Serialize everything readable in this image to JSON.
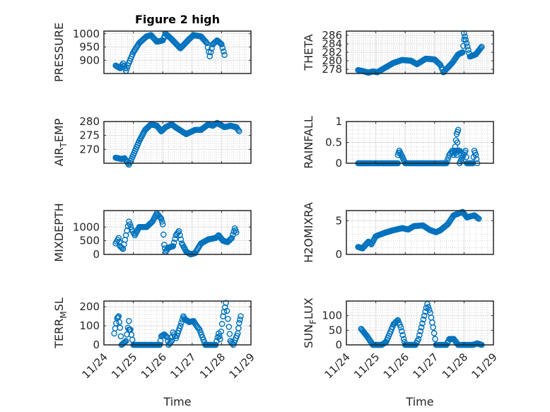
{
  "chart_data": [
    {
      "type": "scatter",
      "title": "Figure 2 high",
      "ylabel": "PRESSURE",
      "ylabel_sub": "",
      "ylim": [
        850,
        1010
      ],
      "yticks": [
        900,
        950,
        1000
      ],
      "xlim_days": [
        0,
        5
      ],
      "xticks": [
        "11/24",
        "11/25",
        "11/26",
        "11/27",
        "11/28",
        "11/29"
      ],
      "show_xticks": false,
      "points": [
        [
          0.4,
          880
        ],
        [
          0.55,
          870
        ],
        [
          0.65,
          888
        ],
        [
          0.75,
          860
        ],
        [
          0.85,
          890
        ],
        [
          1.0,
          930
        ],
        [
          1.2,
          965
        ],
        [
          1.45,
          990
        ],
        [
          1.6,
          995
        ],
        [
          1.8,
          970
        ],
        [
          2.0,
          975
        ],
        [
          2.1,
          1000
        ],
        [
          2.3,
          980
        ],
        [
          2.6,
          945
        ],
        [
          2.9,
          980
        ],
        [
          3.05,
          995
        ],
        [
          3.3,
          990
        ],
        [
          3.5,
          965
        ],
        [
          3.6,
          915
        ],
        [
          3.7,
          960
        ],
        [
          3.85,
          975
        ],
        [
          4.0,
          960
        ],
        [
          4.1,
          920
        ]
      ],
      "grid": true,
      "minor_grid": true
    },
    {
      "type": "scatter",
      "title": "",
      "ylabel": "THETA",
      "ylabel_sub": "",
      "ylim": [
        277,
        287
      ],
      "yticks": [
        278,
        280,
        282,
        284,
        286
      ],
      "xlim_days": [
        0,
        5
      ],
      "xticks": [
        "11/24",
        "11/25",
        "11/26",
        "11/27",
        "11/28",
        "11/29"
      ],
      "show_xticks": false,
      "points": [
        [
          0.4,
          277.8
        ],
        [
          0.6,
          277.5
        ],
        [
          0.75,
          277.2
        ],
        [
          0.9,
          277.5
        ],
        [
          1.05,
          277.3
        ],
        [
          1.3,
          278.3
        ],
        [
          1.6,
          279.5
        ],
        [
          1.9,
          280.2
        ],
        [
          2.2,
          280
        ],
        [
          2.4,
          279.2
        ],
        [
          2.7,
          280.5
        ],
        [
          3.0,
          280.3
        ],
        [
          3.2,
          279
        ],
        [
          3.3,
          277.3
        ],
        [
          3.6,
          279.5
        ],
        [
          3.8,
          281.5
        ],
        [
          3.95,
          282
        ],
        [
          4.0,
          285
        ],
        [
          4.0,
          286.5
        ],
        [
          4.2,
          281
        ],
        [
          4.4,
          281.5
        ],
        [
          4.6,
          283.3
        ]
      ],
      "grid": true,
      "minor_grid": true
    },
    {
      "type": "scatter",
      "title": "",
      "ylabel": "AIR",
      "ylabel_sub": "T",
      "ylabel_tail": "EMP",
      "ylim": [
        265,
        280
      ],
      "yticks": [
        270,
        275,
        280
      ],
      "xlim_days": [
        0,
        5
      ],
      "xticks": [
        "11/24",
        "11/25",
        "11/26",
        "11/27",
        "11/28",
        "11/29"
      ],
      "show_xticks": false,
      "points": [
        [
          0.4,
          267
        ],
        [
          0.6,
          266.5
        ],
        [
          0.7,
          266.8
        ],
        [
          0.85,
          264.5
        ],
        [
          1.0,
          268
        ],
        [
          1.2,
          273
        ],
        [
          1.4,
          277
        ],
        [
          1.6,
          279
        ],
        [
          1.8,
          278.5
        ],
        [
          1.95,
          276.5
        ],
        [
          2.1,
          278
        ],
        [
          2.3,
          279
        ],
        [
          2.5,
          277.5
        ],
        [
          2.8,
          275.5
        ],
        [
          3.1,
          277
        ],
        [
          3.3,
          277
        ],
        [
          3.55,
          279
        ],
        [
          3.7,
          278.5
        ],
        [
          3.85,
          279.5
        ],
        [
          4.1,
          278
        ],
        [
          4.3,
          278.5
        ],
        [
          4.5,
          278
        ],
        [
          4.6,
          276.5
        ]
      ],
      "grid": true,
      "minor_grid": true
    },
    {
      "type": "scatter",
      "title": "",
      "ylabel": "RAINFALL",
      "ylabel_sub": "",
      "ylim": [
        0,
        1
      ],
      "yticks": [
        0,
        0.5,
        1
      ],
      "xlim_days": [
        0,
        5
      ],
      "xticks": [
        "11/24",
        "11/25",
        "11/26",
        "11/27",
        "11/28",
        "11/29"
      ],
      "show_xticks": false,
      "points": [
        [
          0.4,
          0
        ],
        [
          0.8,
          0
        ],
        [
          1.2,
          0
        ],
        [
          1.6,
          0
        ],
        [
          1.75,
          0
        ],
        [
          1.75,
          0.2
        ],
        [
          1.8,
          0.3
        ],
        [
          2.0,
          0
        ],
        [
          2.4,
          0
        ],
        [
          2.8,
          0
        ],
        [
          3.2,
          0
        ],
        [
          3.4,
          0
        ],
        [
          3.5,
          0.2
        ],
        [
          3.6,
          0.3
        ],
        [
          3.65,
          0.2
        ],
        [
          3.7,
          0.4
        ],
        [
          3.75,
          0.7
        ],
        [
          3.8,
          0.8
        ],
        [
          3.75,
          0.2
        ],
        [
          3.7,
          0.3
        ],
        [
          3.85,
          0.3
        ],
        [
          3.85,
          0
        ],
        [
          4.05,
          0.3
        ],
        [
          4.1,
          0
        ],
        [
          4.3,
          0
        ],
        [
          4.35,
          0.3
        ],
        [
          4.4,
          0.2
        ],
        [
          4.45,
          0
        ]
      ],
      "grid": true,
      "minor_grid": true
    },
    {
      "type": "scatter",
      "title": "",
      "ylabel": "MIXDEPTH",
      "ylabel_sub": "",
      "ylim": [
        0,
        1600
      ],
      "yticks": [
        0,
        500,
        1000
      ],
      "xlim_days": [
        0,
        5
      ],
      "xticks": [
        "11/24",
        "11/25",
        "11/26",
        "11/27",
        "11/28",
        "11/29"
      ],
      "show_xticks": false,
      "points": [
        [
          0.4,
          400
        ],
        [
          0.5,
          600
        ],
        [
          0.55,
          300
        ],
        [
          0.65,
          200
        ],
        [
          0.75,
          700
        ],
        [
          0.85,
          1200
        ],
        [
          0.95,
          900
        ],
        [
          1.05,
          700
        ],
        [
          1.2,
          1000
        ],
        [
          1.45,
          1000
        ],
        [
          1.65,
          1200
        ],
        [
          1.8,
          1500
        ],
        [
          1.95,
          1300
        ],
        [
          2.0,
          1100
        ],
        [
          2.05,
          350
        ],
        [
          2.1,
          100
        ],
        [
          2.2,
          250
        ],
        [
          2.35,
          300
        ],
        [
          2.45,
          700
        ],
        [
          2.55,
          850
        ],
        [
          2.65,
          400
        ],
        [
          2.8,
          100
        ],
        [
          2.95,
          0
        ],
        [
          3.1,
          50
        ],
        [
          3.3,
          400
        ],
        [
          3.55,
          550
        ],
        [
          3.8,
          600
        ],
        [
          3.9,
          700
        ],
        [
          4.05,
          500
        ],
        [
          4.2,
          450
        ],
        [
          4.35,
          600
        ],
        [
          4.45,
          950
        ],
        [
          4.5,
          800
        ]
      ],
      "grid": true,
      "minor_grid": true
    },
    {
      "type": "scatter",
      "title": "",
      "ylabel": "H2OMIXRA",
      "ylabel_sub": "",
      "ylim": [
        0,
        6.5
      ],
      "yticks": [
        0,
        5
      ],
      "xlim_days": [
        0,
        5
      ],
      "xticks": [
        "11/24",
        "11/25",
        "11/26",
        "11/27",
        "11/28",
        "11/29"
      ],
      "show_xticks": false,
      "points": [
        [
          0.4,
          1.1
        ],
        [
          0.55,
          0.9
        ],
        [
          0.75,
          1.9
        ],
        [
          0.85,
          1.5
        ],
        [
          1.0,
          2.7
        ],
        [
          1.3,
          3.2
        ],
        [
          1.6,
          3.6
        ],
        [
          1.9,
          3.9
        ],
        [
          2.1,
          3.7
        ],
        [
          2.3,
          4.2
        ],
        [
          2.6,
          4.3
        ],
        [
          2.85,
          3.6
        ],
        [
          3.05,
          3.3
        ],
        [
          3.2,
          3.6
        ],
        [
          3.45,
          4.5
        ],
        [
          3.65,
          5.8
        ],
        [
          3.95,
          6.3
        ],
        [
          4.1,
          5.5
        ],
        [
          4.35,
          5.8
        ],
        [
          4.5,
          5.3
        ]
      ],
      "grid": true,
      "minor_grid": true
    },
    {
      "type": "scatter",
      "title": "",
      "ylabel": "TERR",
      "ylabel_sub": "M",
      "ylabel_tail": "SL",
      "ylim": [
        0,
        230
      ],
      "yticks": [
        0,
        100,
        200
      ],
      "xlim_days": [
        0,
        5
      ],
      "xticks": [
        "11/24",
        "11/25",
        "11/26",
        "11/27",
        "11/28",
        "11/29"
      ],
      "show_xticks": true,
      "xlabel": "Time",
      "points": [
        [
          0.35,
          60
        ],
        [
          0.45,
          140
        ],
        [
          0.5,
          150
        ],
        [
          0.55,
          90
        ],
        [
          0.6,
          0
        ],
        [
          0.75,
          20
        ],
        [
          0.85,
          125
        ],
        [
          0.85,
          80
        ],
        [
          0.9,
          80
        ],
        [
          1.0,
          0
        ],
        [
          1.4,
          0
        ],
        [
          1.9,
          0
        ],
        [
          1.95,
          45
        ],
        [
          2.05,
          55
        ],
        [
          2.15,
          40
        ],
        [
          2.2,
          0
        ],
        [
          2.3,
          20
        ],
        [
          2.35,
          65
        ],
        [
          2.45,
          35
        ],
        [
          2.6,
          100
        ],
        [
          2.7,
          150
        ],
        [
          2.75,
          135
        ],
        [
          2.9,
          120
        ],
        [
          3.05,
          125
        ],
        [
          3.15,
          100
        ],
        [
          3.25,
          80
        ],
        [
          3.35,
          40
        ],
        [
          3.45,
          0
        ],
        [
          3.8,
          0
        ],
        [
          3.9,
          60
        ],
        [
          3.95,
          30
        ],
        [
          4.05,
          150
        ],
        [
          4.15,
          220
        ],
        [
          4.25,
          95
        ],
        [
          4.3,
          20
        ],
        [
          4.4,
          0
        ],
        [
          4.55,
          60
        ],
        [
          4.6,
          115
        ],
        [
          4.65,
          150
        ]
      ],
      "grid": true,
      "minor_grid": true
    },
    {
      "type": "scatter",
      "title": "",
      "ylabel": "SUN",
      "ylabel_sub": "F",
      "ylabel_tail": "LUX",
      "ylim": [
        0,
        150
      ],
      "yticks": [
        0,
        50,
        100
      ],
      "xlim_days": [
        0,
        5
      ],
      "xticks": [
        "11/24",
        "11/25",
        "11/26",
        "11/27",
        "11/28",
        "11/29"
      ],
      "show_xticks": true,
      "xlabel": "Time",
      "points": [
        [
          0.5,
          55
        ],
        [
          0.7,
          30
        ],
        [
          0.9,
          0
        ],
        [
          1.2,
          0
        ],
        [
          1.35,
          10
        ],
        [
          1.5,
          45
        ],
        [
          1.6,
          70
        ],
        [
          1.75,
          85
        ],
        [
          1.85,
          60
        ],
        [
          1.95,
          20
        ],
        [
          2.0,
          0
        ],
        [
          2.35,
          0
        ],
        [
          2.45,
          20
        ],
        [
          2.55,
          60
        ],
        [
          2.65,
          100
        ],
        [
          2.75,
          140
        ],
        [
          2.85,
          110
        ],
        [
          2.95,
          60
        ],
        [
          3.05,
          0
        ],
        [
          3.4,
          0
        ],
        [
          3.5,
          20
        ],
        [
          3.65,
          20
        ],
        [
          3.8,
          0
        ],
        [
          4.3,
          0
        ],
        [
          4.45,
          5
        ],
        [
          4.6,
          0
        ]
      ],
      "grid": true,
      "minor_grid": true
    }
  ],
  "marker": {
    "shape": "open-circle",
    "color": "#0072BD"
  },
  "colors": {
    "axis": "#262626",
    "grid": "#dfdfdf",
    "minor_grid": "#bdbdbd"
  }
}
